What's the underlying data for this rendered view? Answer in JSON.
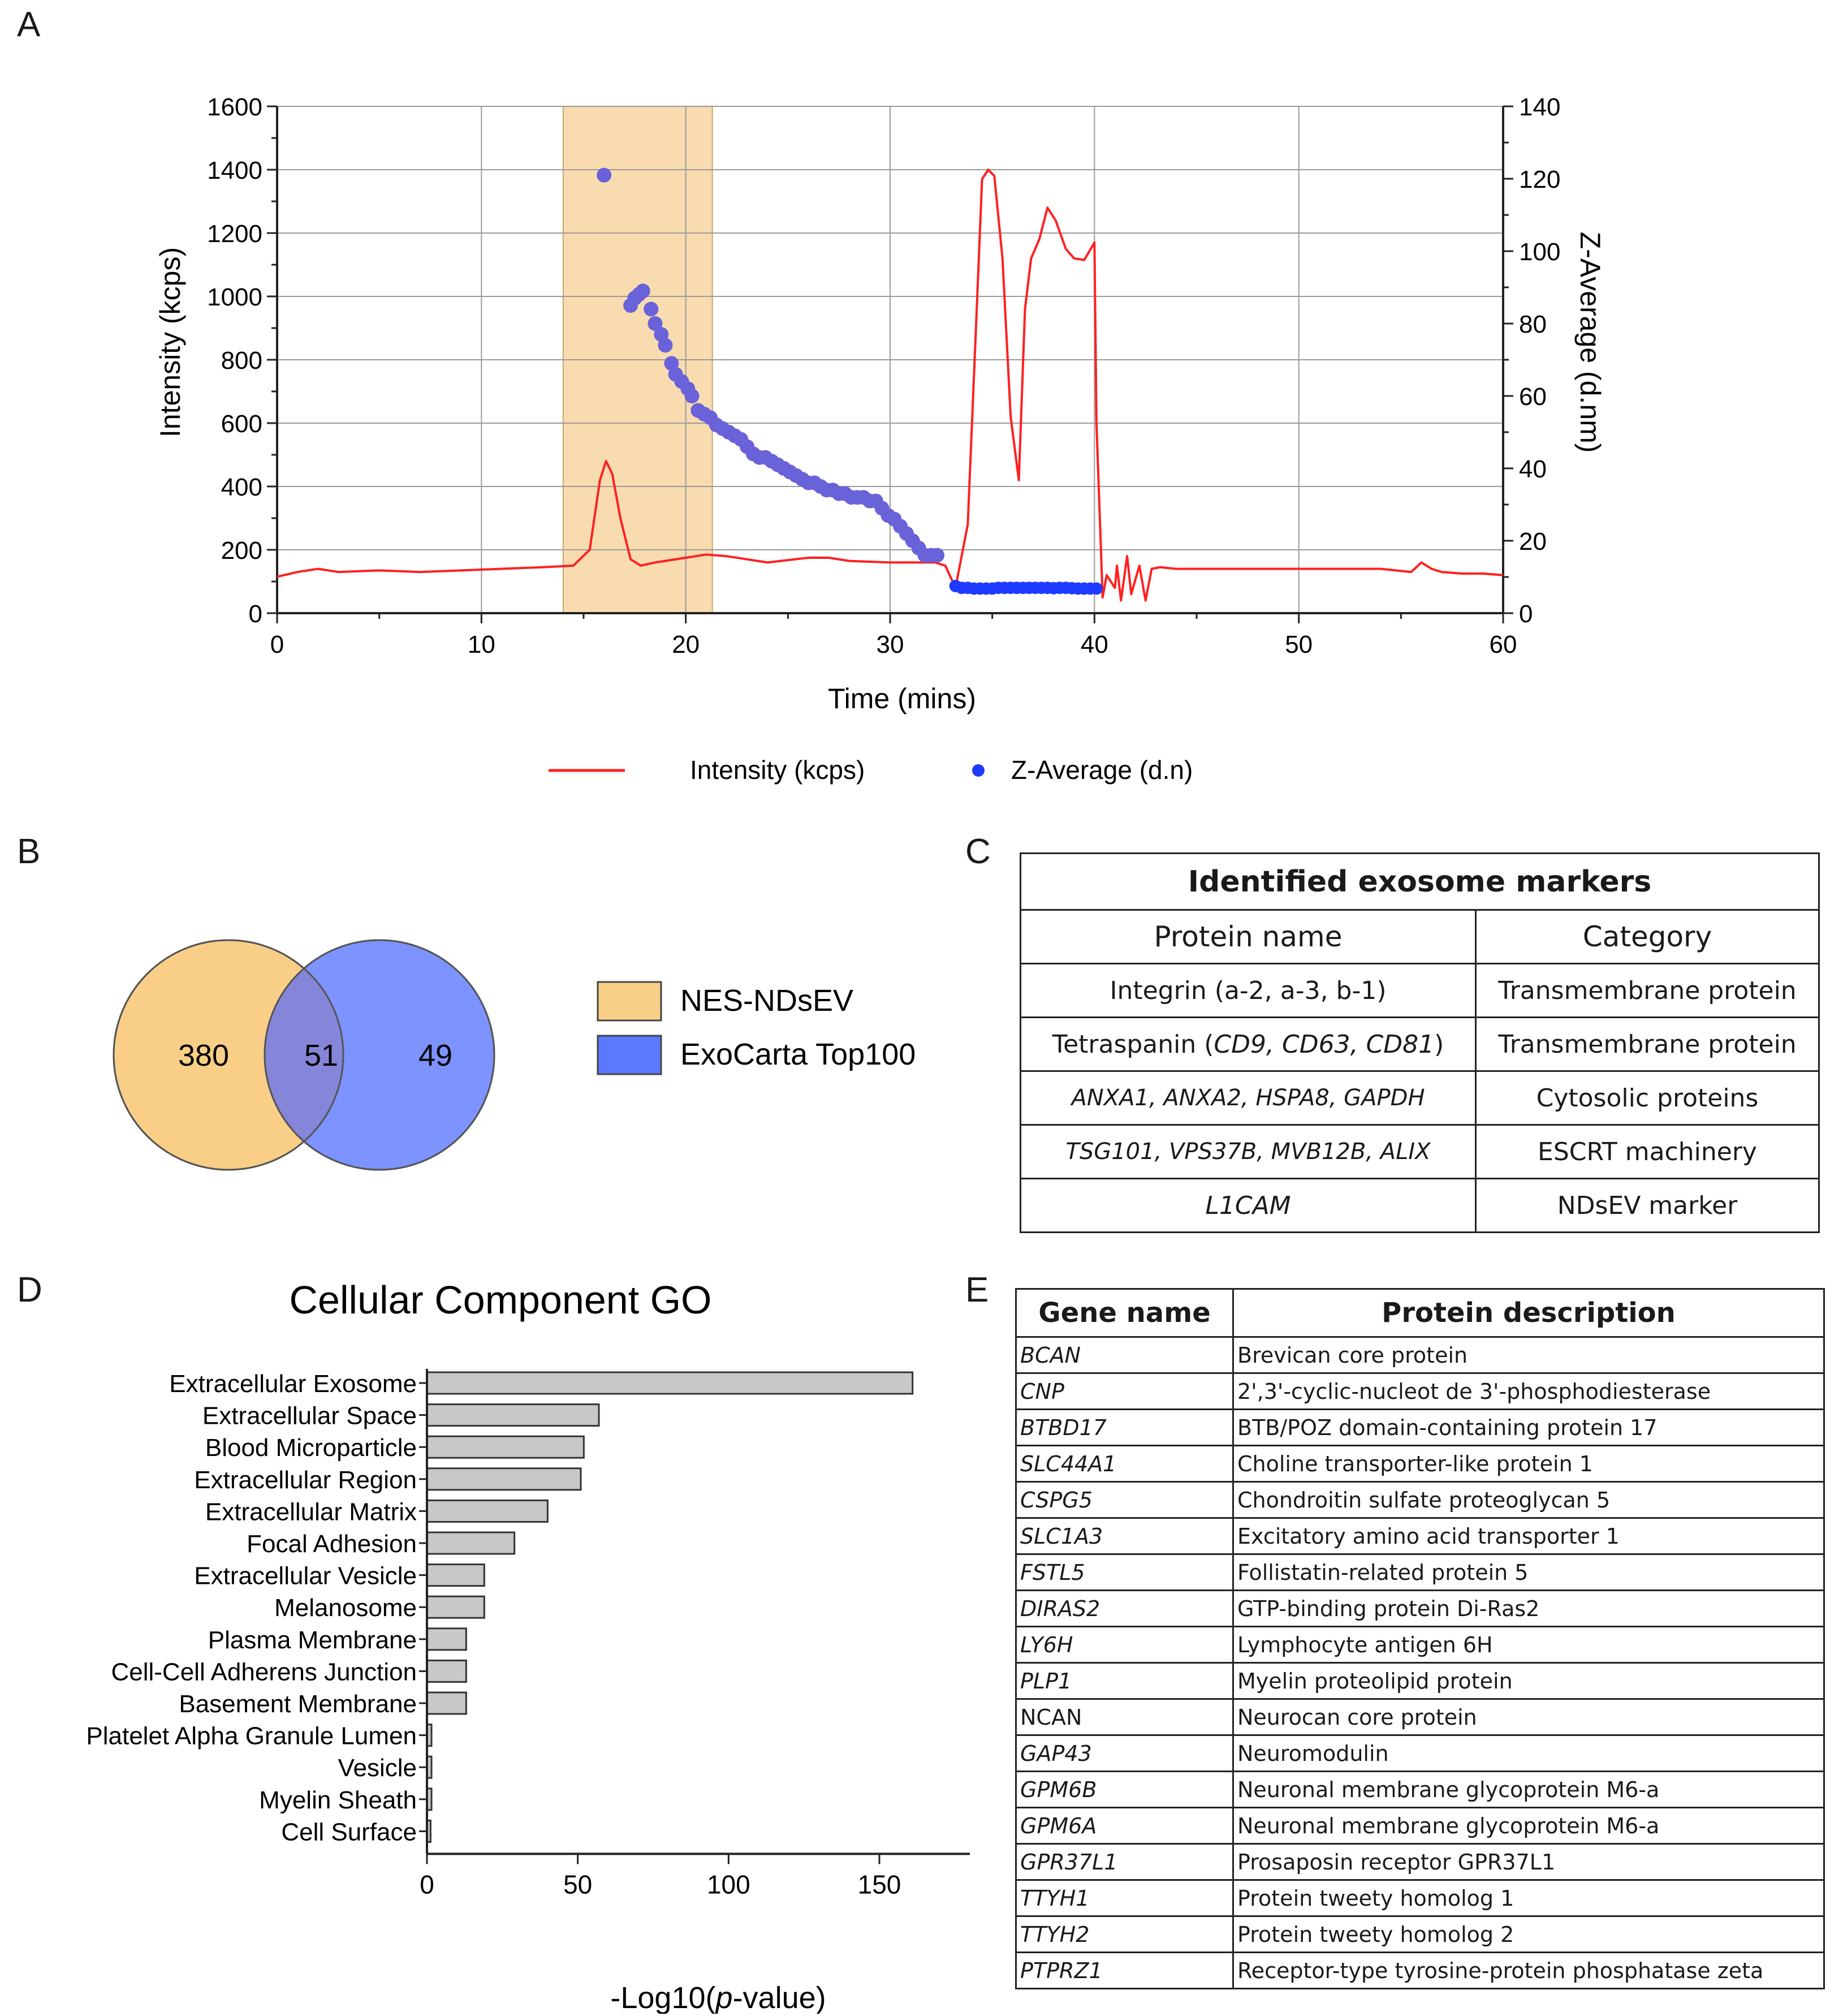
{
  "panels": {
    "a": "A",
    "b": "B",
    "c": "C",
    "d": "D",
    "e": "E"
  },
  "colors": {
    "intensity": "#ff2020",
    "zavg": "#1f3bff",
    "zavg_shade": "#6a62d9",
    "highlight": "#f8dcb0",
    "venn_a": "#f9cf88",
    "venn_b": "#7d93ff",
    "overlap": "#8586d9",
    "bar": "#c8c8c8"
  },
  "chart_data": [
    {
      "id": "A",
      "type": "line",
      "xlabel": "Time (mins)",
      "ylabel": "Intensity (kcps)",
      "y2label": "Z-Average (d.nm)",
      "xlim": [
        0,
        60
      ],
      "ylim": [
        0,
        1600
      ],
      "y2lim": [
        0,
        140
      ],
      "xticks": [
        "0",
        "10",
        "20",
        "30",
        "40",
        "50",
        "60"
      ],
      "yticks": [
        "0",
        "200",
        "400",
        "600",
        "800",
        "1000",
        "1200",
        "1400",
        "1600"
      ],
      "y2ticks": [
        "0",
        "20",
        "40",
        "60",
        "80",
        "100",
        "120",
        "140"
      ],
      "highlight_x": [
        14,
        21.3
      ],
      "grid": true,
      "legend": [
        "Intensity (kcps)",
        "Z-Average (d.n)"
      ],
      "intensity": {
        "name": "Intensity (kcps)",
        "x": [
          0,
          1,
          2,
          3,
          5,
          7,
          9,
          11,
          13,
          14.5,
          15.3,
          15.8,
          16.1,
          16.4,
          16.8,
          17.3,
          17.8,
          18.5,
          20,
          21,
          22,
          24,
          26,
          27,
          28,
          30,
          31.5,
          32.2,
          32.7,
          33.2,
          33.8,
          34.2,
          34.5,
          34.8,
          35.1,
          35.5,
          35.9,
          36.3,
          36.6,
          36.9,
          37.3,
          37.7,
          38.1,
          38.6,
          39,
          39.5,
          40,
          40.1,
          40.4,
          40.6,
          41,
          41.1,
          41.3,
          41.6,
          41.8,
          42.2,
          42.5,
          42.8,
          43.2,
          44,
          46,
          48,
          50,
          52,
          54,
          55.5,
          56,
          56.5,
          57,
          58,
          59,
          60
        ],
        "y": [
          115,
          130,
          140,
          130,
          135,
          130,
          135,
          140,
          145,
          150,
          200,
          420,
          480,
          440,
          300,
          170,
          150,
          160,
          175,
          185,
          180,
          160,
          175,
          175,
          165,
          160,
          160,
          160,
          150,
          80,
          280,
          900,
          1370,
          1400,
          1380,
          1120,
          620,
          420,
          960,
          1120,
          1180,
          1280,
          1240,
          1150,
          1120,
          1115,
          1170,
          600,
          50,
          120,
          80,
          150,
          40,
          180,
          60,
          150,
          40,
          140,
          145,
          140,
          140,
          140,
          140,
          140,
          140,
          130,
          160,
          140,
          130,
          125,
          125,
          120
        ]
      },
      "zavg": {
        "name": "Z-Average (d.n)",
        "x": [
          16,
          17.3,
          17.5,
          17.7,
          17.9,
          18.3,
          18.5,
          18.8,
          19,
          19.3,
          19.5,
          19.8,
          20.1,
          20.3,
          20.6,
          20.9,
          21.2,
          21.5,
          21.8,
          22.1,
          22.4,
          22.7,
          23,
          23.3,
          23.6,
          23.9,
          24.2,
          24.5,
          24.8,
          25.1,
          25.4,
          25.7,
          26,
          26.3,
          26.6,
          26.9,
          27.2,
          27.5,
          27.8,
          28.1,
          28.4,
          28.7,
          29,
          29.3,
          29.6,
          29.9,
          30.2,
          30.5,
          30.8,
          31.1,
          31.4,
          31.7,
          32,
          32.3,
          33.2,
          33.5,
          33.8,
          34.1,
          34.4,
          34.7,
          35,
          35.3,
          35.6,
          35.9,
          36.2,
          36.5,
          36.8,
          37.1,
          37.4,
          37.7,
          38,
          38.3,
          38.6,
          38.9,
          39.2,
          39.5,
          39.8,
          40.1
        ],
        "y": [
          121,
          85,
          87,
          88,
          89,
          84,
          80,
          77,
          74,
          69,
          66,
          64,
          62,
          60,
          56,
          55,
          54,
          52,
          51,
          50,
          49,
          48,
          46,
          44,
          43,
          43,
          42,
          41,
          40,
          39,
          38,
          37,
          36,
          36,
          35,
          34,
          34,
          33,
          33,
          32,
          32,
          32,
          31,
          31,
          29,
          27,
          26,
          24,
          22,
          20,
          18,
          16,
          16,
          16,
          7.5,
          7,
          7,
          6.8,
          6.8,
          6.8,
          6.8,
          7,
          7,
          7,
          7,
          7,
          7,
          7,
          7,
          7,
          6.9,
          7,
          7,
          6.9,
          6.8,
          6.8,
          6.8,
          6.8
        ]
      }
    },
    {
      "id": "B",
      "type": "venn",
      "sets": [
        "NES-NDsEV",
        "ExoCarta Top100"
      ],
      "values": {
        "only_a": "380",
        "both": "51",
        "only_b": "49"
      }
    },
    {
      "id": "D",
      "type": "bar",
      "orientation": "horizontal",
      "title": "Cellular Component GO",
      "xlabel_pre": "-Log10(",
      "xlabel_it": "p",
      "xlabel_post": "-value)",
      "xlim": [
        0,
        180
      ],
      "xticks": [
        "0",
        "50",
        "100",
        "150"
      ],
      "categories": [
        "Extracellular Exosome",
        "Extracellular Space",
        "Blood Microparticle",
        "Extracellular Region",
        "Extracellular Matrix",
        "Focal Adhesion",
        "Extracellular Vesicle",
        "Melanosome",
        "Plasma Membrane",
        "Cell-Cell Adherens Junction",
        "Basement Membrane",
        "Platelet Alpha Granule Lumen",
        "Vesicle",
        "Myelin Sheath",
        "Cell Surface"
      ],
      "values": [
        161,
        57,
        52,
        51,
        40,
        29,
        19,
        19,
        13,
        13,
        13,
        1.5,
        1.5,
        1.5,
        1.2
      ]
    }
  ],
  "table_c": {
    "title": "Identified exosome markers",
    "col1": "Protein name",
    "col2": "Category",
    "rows": [
      {
        "name": "Integrin (a-2, a-3, b-1)",
        "cat": "Transmembrane protein"
      },
      {
        "pre": "Tetraspanin (",
        "it": "CD9, CD63, CD81",
        "post": ")",
        "cat": "Transmembrane protein"
      },
      {
        "it": "ANXA1, ANXA2, HSPA8, GAPDH",
        "cat": "Cytosolic proteins"
      },
      {
        "it": "TSG101, VPS37B, MVB12B, ALIX",
        "cat": "ESCRT machinery"
      },
      {
        "it": "L1CAM",
        "cat": "NDsEV marker"
      }
    ]
  },
  "table_e": {
    "col1": "Gene name",
    "col2": "Protein description",
    "rows": [
      {
        "gene": "BCAN",
        "desc": "Brevican core protein"
      },
      {
        "gene": "CNP",
        "desc": "2',3'-cyclic-nucleot de 3'-phosphodiesterase"
      },
      {
        "gene": "BTBD17",
        "desc": "BTB/POZ domain-containing protein 17"
      },
      {
        "gene": "SLC44A1",
        "desc": "Choline transporter-like protein 1"
      },
      {
        "gene": "CSPG5",
        "desc": "Chondroitin sulfate proteoglycan 5"
      },
      {
        "gene": "SLC1A3",
        "desc": "Excitatory amino acid transporter 1"
      },
      {
        "gene": "FSTL5",
        "desc": "Follistatin-related protein 5"
      },
      {
        "gene": "DIRAS2",
        "desc": "GTP-binding protein Di-Ras2"
      },
      {
        "gene": "LY6H",
        "desc": "Lymphocyte antigen 6H"
      },
      {
        "gene": "PLP1",
        "desc": "Myelin proteolipid protein"
      },
      {
        "gene": "NCAN",
        "desc": "Neurocan core protein",
        "upright": true
      },
      {
        "gene": "GAP43",
        "desc": "Neuromodulin"
      },
      {
        "gene": "GPM6B",
        "desc": "Neuronal membrane glycoprotein M6-a"
      },
      {
        "gene": "GPM6A",
        "desc": "Neuronal membrane glycoprotein M6-a"
      },
      {
        "gene": "GPR37L1",
        "desc": "Prosaposin receptor GPR37L1"
      },
      {
        "gene": "TTYH1",
        "desc": "Protein tweety homolog 1"
      },
      {
        "gene": "TTYH2",
        "desc": "Protein tweety homolog 2"
      },
      {
        "gene": "PTPRZ1",
        "desc": "Receptor-type tyrosine-protein phosphatase zeta"
      }
    ]
  }
}
